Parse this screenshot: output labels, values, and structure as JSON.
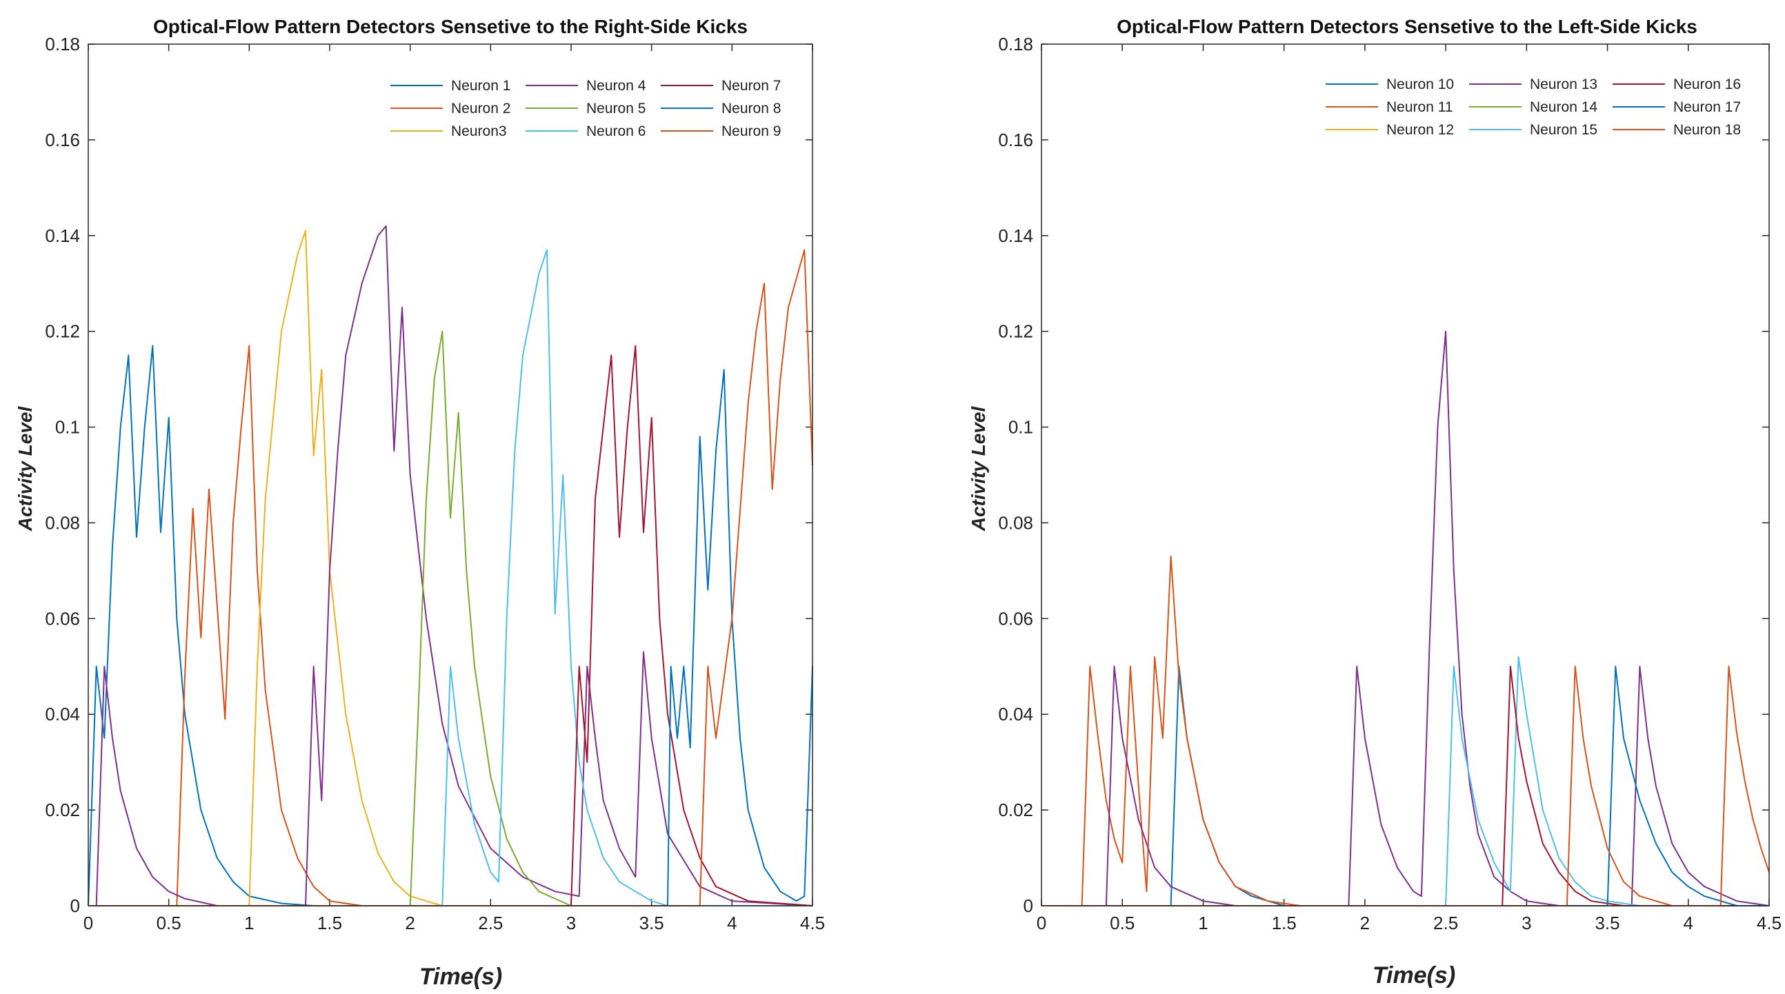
{
  "chart_data": [
    {
      "type": "line",
      "title": "Optical-Flow Pattern Detectors Sensetive to the Right-Side Kicks",
      "xlabel": "Time(s)",
      "ylabel": "Activity Level",
      "xlim": [
        0,
        4.5
      ],
      "ylim": [
        0,
        0.18
      ],
      "xticks": [
        "0",
        "0.5",
        "1",
        "1.5",
        "2",
        "2.5",
        "3",
        "3.5",
        "4",
        "4.5"
      ],
      "yticks": [
        "0",
        "0.02",
        "0.04",
        "0.06",
        "0.08",
        "0.1",
        "0.12",
        "0.14",
        "0.16",
        "0.18"
      ],
      "legend_position": "top-right",
      "series": [
        {
          "name": "Neuron 1",
          "color": "#0072BD",
          "x": [
            0,
            0.05,
            0.1,
            0.15,
            0.2,
            0.25,
            0.3,
            0.35,
            0.4,
            0.45,
            0.5,
            0.55,
            0.6,
            0.7,
            0.8,
            0.9,
            1.0,
            1.2,
            1.4,
            1.6,
            4.5
          ],
          "y": [
            0,
            0.05,
            0.035,
            0.075,
            0.1,
            0.115,
            0.077,
            0.1,
            0.117,
            0.078,
            0.102,
            0.06,
            0.04,
            0.02,
            0.01,
            0.005,
            0.002,
            0.0005,
            0,
            0,
            0
          ]
        },
        {
          "name": "Neuron 2",
          "color": "#D95319",
          "x": [
            0,
            0.55,
            0.6,
            0.65,
            0.7,
            0.75,
            0.85,
            0.9,
            0.95,
            1.0,
            1.05,
            1.1,
            1.2,
            1.3,
            1.4,
            1.5,
            1.7,
            2.0,
            4.5
          ],
          "y": [
            0,
            0,
            0.048,
            0.083,
            0.056,
            0.087,
            0.039,
            0.08,
            0.1,
            0.117,
            0.07,
            0.045,
            0.02,
            0.01,
            0.004,
            0.001,
            0,
            0,
            0
          ]
        },
        {
          "name": "Neuron3",
          "color": "#EDB120",
          "x": [
            0,
            1.0,
            1.05,
            1.1,
            1.2,
            1.3,
            1.35,
            1.4,
            1.45,
            1.5,
            1.6,
            1.7,
            1.8,
            1.9,
            2.0,
            2.2,
            4.5
          ],
          "y": [
            0,
            0,
            0.05,
            0.085,
            0.12,
            0.136,
            0.141,
            0.094,
            0.112,
            0.07,
            0.04,
            0.022,
            0.011,
            0.005,
            0.002,
            0,
            0
          ]
        },
        {
          "name": "Neuron 4",
          "color": "#7E2F8E",
          "x": [
            0,
            0.05,
            0.1,
            0.15,
            0.2,
            0.3,
            0.4,
            0.5,
            0.6,
            0.8,
            1.35,
            1.4,
            1.45,
            1.5,
            1.55,
            1.6,
            1.7,
            1.8,
            1.85,
            1.9,
            1.95,
            2.0,
            2.1,
            2.2,
            2.3,
            2.5,
            2.7,
            2.9,
            3.05,
            3.1,
            3.15,
            3.2,
            3.3,
            3.4,
            3.45,
            3.5,
            3.6,
            3.8,
            4.0,
            4.5
          ],
          "y": [
            0,
            0,
            0.05,
            0.035,
            0.024,
            0.012,
            0.006,
            0.003,
            0.0015,
            0,
            0,
            0.05,
            0.022,
            0.07,
            0.095,
            0.115,
            0.13,
            0.14,
            0.142,
            0.095,
            0.125,
            0.09,
            0.06,
            0.038,
            0.025,
            0.012,
            0.006,
            0.003,
            0.002,
            0.05,
            0.035,
            0.022,
            0.012,
            0.006,
            0.053,
            0.035,
            0.015,
            0.004,
            0.001,
            0
          ]
        },
        {
          "name": "Neuron 5",
          "color": "#77AC30",
          "x": [
            0,
            2.0,
            2.05,
            2.1,
            2.15,
            2.2,
            2.25,
            2.3,
            2.35,
            2.4,
            2.5,
            2.6,
            2.7,
            2.8,
            3.0,
            4.5
          ],
          "y": [
            0,
            0,
            0.04,
            0.085,
            0.11,
            0.12,
            0.081,
            0.103,
            0.07,
            0.05,
            0.027,
            0.014,
            0.007,
            0.003,
            0,
            0
          ]
        },
        {
          "name": "Neuron 6",
          "color": "#4DBEEE",
          "x": [
            0,
            2.2,
            2.25,
            2.3,
            2.4,
            2.5,
            2.55,
            2.6,
            2.65,
            2.7,
            2.8,
            2.85,
            2.9,
            2.95,
            3.0,
            3.05,
            3.1,
            3.2,
            3.3,
            3.4,
            3.5,
            3.6,
            4.5
          ],
          "y": [
            0,
            0,
            0.05,
            0.035,
            0.017,
            0.007,
            0.005,
            0.06,
            0.095,
            0.115,
            0.132,
            0.137,
            0.061,
            0.09,
            0.05,
            0.03,
            0.02,
            0.01,
            0.005,
            0.003,
            0.001,
            0,
            0
          ]
        },
        {
          "name": "Neuron 7",
          "color": "#A2142F",
          "x": [
            0,
            3.0,
            3.05,
            3.1,
            3.15,
            3.2,
            3.25,
            3.3,
            3.35,
            3.4,
            3.45,
            3.5,
            3.55,
            3.6,
            3.7,
            3.8,
            3.9,
            4.1,
            4.5
          ],
          "y": [
            0,
            0,
            0.05,
            0.03,
            0.085,
            0.1,
            0.115,
            0.077,
            0.1,
            0.117,
            0.078,
            0.102,
            0.06,
            0.04,
            0.02,
            0.01,
            0.004,
            0.001,
            0
          ]
        },
        {
          "name": "Neuron 8",
          "color": "#0072BD",
          "x": [
            0,
            3.6,
            3.62,
            3.66,
            3.7,
            3.74,
            3.8,
            3.85,
            3.9,
            3.95,
            4.0,
            4.05,
            4.1,
            4.2,
            4.3,
            4.4,
            4.45,
            4.5
          ],
          "y": [
            0,
            0,
            0.05,
            0.035,
            0.05,
            0.033,
            0.098,
            0.066,
            0.095,
            0.112,
            0.06,
            0.035,
            0.02,
            0.008,
            0.003,
            0.001,
            0.002,
            0.05
          ]
        },
        {
          "name": "Neuron 9",
          "color": "#D95319",
          "x": [
            0,
            3.8,
            3.85,
            3.9,
            4.0,
            4.1,
            4.15,
            4.2,
            4.25,
            4.3,
            4.35,
            4.45,
            4.5
          ],
          "y": [
            0,
            0,
            0.05,
            0.035,
            0.06,
            0.105,
            0.12,
            0.13,
            0.087,
            0.11,
            0.125,
            0.137,
            0.092
          ]
        }
      ]
    },
    {
      "type": "line",
      "title": "Optical-Flow Pattern Detectors Sensetive to the Left-Side Kicks",
      "xlabel": "Time(s)",
      "ylabel": "Activity Level",
      "xlim": [
        0,
        4.5
      ],
      "ylim": [
        0,
        0.18
      ],
      "xticks": [
        "0",
        "0.5",
        "1",
        "1.5",
        "2",
        "2.5",
        "3",
        "3.5",
        "4",
        "4.5"
      ],
      "yticks": [
        "0",
        "0.02",
        "0.04",
        "0.06",
        "0.08",
        "0.1",
        "0.12",
        "0.14",
        "0.16",
        "0.18"
      ],
      "legend_position": "top-right",
      "series": [
        {
          "name": "Neuron 10",
          "color": "#0072BD",
          "x": [
            0,
            0.8,
            0.85,
            0.9,
            1.0,
            1.1,
            1.2,
            1.3,
            1.5,
            4.5
          ],
          "y": [
            0,
            0,
            0.05,
            0.035,
            0.018,
            0.009,
            0.004,
            0.002,
            0,
            0
          ]
        },
        {
          "name": "Neuron 11",
          "color": "#D95319",
          "x": [
            0,
            0.25,
            0.3,
            0.35,
            0.4,
            0.45,
            0.5,
            0.55,
            0.6,
            0.65,
            0.7,
            0.75,
            0.8,
            0.85,
            0.9,
            1.0,
            1.1,
            1.2,
            1.4,
            1.6,
            4.5
          ],
          "y": [
            0,
            0,
            0.05,
            0.035,
            0.022,
            0.014,
            0.009,
            0.05,
            0.025,
            0.003,
            0.052,
            0.035,
            0.073,
            0.048,
            0.035,
            0.018,
            0.009,
            0.004,
            0.001,
            0,
            0
          ]
        },
        {
          "name": "Neuron 12",
          "color": "#EDB120",
          "x": [
            0,
            4.5
          ],
          "y": [
            0,
            0
          ]
        },
        {
          "name": "Neuron 13",
          "color": "#7E2F8E",
          "x": [
            0,
            0.4,
            0.45,
            0.5,
            0.6,
            0.7,
            0.8,
            1.0,
            1.2,
            1.9,
            1.95,
            2.0,
            2.1,
            2.2,
            2.3,
            2.35,
            2.4,
            2.45,
            2.5,
            2.55,
            2.6,
            2.65,
            2.7,
            2.8,
            2.9,
            3.0,
            3.2,
            3.65,
            3.7,
            3.75,
            3.8,
            3.9,
            4.0,
            4.1,
            4.3,
            4.5
          ],
          "y": [
            0,
            0,
            0.05,
            0.035,
            0.018,
            0.008,
            0.004,
            0.001,
            0,
            0,
            0.05,
            0.035,
            0.017,
            0.008,
            0.003,
            0.002,
            0.055,
            0.1,
            0.12,
            0.07,
            0.04,
            0.025,
            0.015,
            0.006,
            0.003,
            0.001,
            0,
            0,
            0.05,
            0.035,
            0.025,
            0.013,
            0.007,
            0.004,
            0.001,
            0
          ]
        },
        {
          "name": "Neuron 14",
          "color": "#77AC30",
          "x": [
            0,
            4.5
          ],
          "y": [
            0,
            0
          ]
        },
        {
          "name": "Neuron 15",
          "color": "#4DBEEE",
          "x": [
            0,
            2.5,
            2.55,
            2.6,
            2.7,
            2.8,
            2.9,
            2.95,
            3.0,
            3.05,
            3.1,
            3.2,
            3.3,
            3.4,
            3.5,
            3.7,
            4.5
          ],
          "y": [
            0,
            0,
            0.05,
            0.035,
            0.018,
            0.009,
            0.003,
            0.052,
            0.04,
            0.03,
            0.02,
            0.01,
            0.005,
            0.002,
            0.001,
            0,
            0
          ]
        },
        {
          "name": "Neuron 16",
          "color": "#A2142F",
          "x": [
            0,
            2.85,
            2.9,
            2.95,
            3.0,
            3.1,
            3.2,
            3.3,
            3.4,
            3.6,
            4.5
          ],
          "y": [
            0,
            0,
            0.05,
            0.035,
            0.026,
            0.013,
            0.007,
            0.003,
            0.001,
            0,
            0
          ]
        },
        {
          "name": "Neuron 17",
          "color": "#0072BD",
          "x": [
            0,
            3.5,
            3.55,
            3.6,
            3.7,
            3.8,
            3.9,
            4.0,
            4.1,
            4.3,
            4.5
          ],
          "y": [
            0,
            0,
            0.05,
            0.035,
            0.022,
            0.013,
            0.007,
            0.004,
            0.002,
            0,
            0
          ]
        },
        {
          "name": "Neuron 18",
          "color": "#D95319",
          "x": [
            0,
            3.25,
            3.3,
            3.35,
            3.4,
            3.5,
            3.6,
            3.7,
            3.9,
            4.2,
            4.25,
            4.3,
            4.35,
            4.4,
            4.45,
            4.5
          ],
          "y": [
            0,
            0,
            0.05,
            0.035,
            0.025,
            0.012,
            0.005,
            0.002,
            0,
            0,
            0.05,
            0.036,
            0.026,
            0.018,
            0.012,
            0.007
          ]
        }
      ]
    }
  ]
}
